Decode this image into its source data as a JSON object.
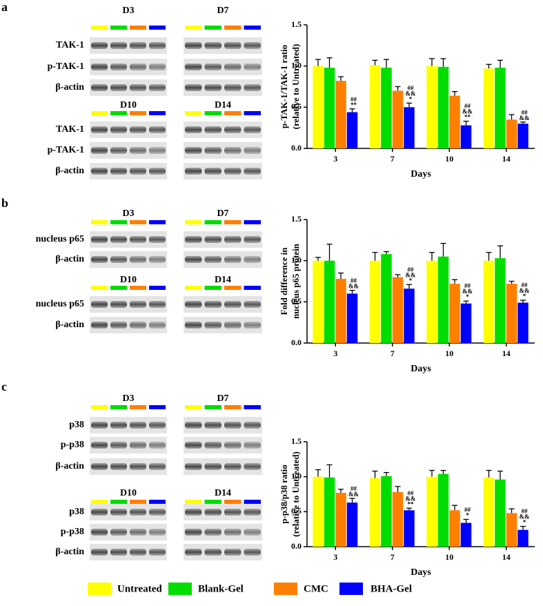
{
  "panels": [
    {
      "letter": "a",
      "groups": [
        {
          "days": [
            "D3",
            "D7"
          ],
          "rows": [
            "TAK-1",
            "p-TAK-1",
            "β-actin"
          ]
        },
        {
          "days": [
            "D10",
            "D14"
          ],
          "rows": [
            "TAK-1",
            "p-TAK-1",
            "β-actin"
          ]
        }
      ]
    },
    {
      "letter": "b",
      "groups": [
        {
          "days": [
            "D3",
            "D7"
          ],
          "rows": [
            "nucleus p65",
            "β-actin"
          ]
        },
        {
          "days": [
            "D10",
            "D14"
          ],
          "rows": [
            "nucleus p65",
            "β-actin"
          ]
        }
      ]
    },
    {
      "letter": "c",
      "groups": [
        {
          "days": [
            "D3",
            "D7"
          ],
          "rows": [
            "p38",
            "p-p38",
            "β-actin"
          ]
        },
        {
          "days": [
            "D10",
            "D14"
          ],
          "rows": [
            "p38",
            "p-p38",
            "β-actin"
          ]
        }
      ]
    }
  ],
  "chart_data": [
    {
      "type": "bar",
      "ylabel": [
        "p-TAK-1/TAK-1 ratio",
        "(relative to Untreated)"
      ],
      "xlabel": "Days",
      "categories": [
        "3",
        "7",
        "10",
        "14"
      ],
      "ylim": [
        0,
        1.5
      ],
      "yticks": [
        {
          "value": 0,
          "label": "0.0"
        },
        0.5,
        {
          "value": 1,
          "label": "1.0"
        },
        1.5
      ],
      "series": [
        {
          "name": "Untreated",
          "color": "#ffff00",
          "values": [
            1.0,
            1.01,
            1.0,
            0.97
          ],
          "errors": [
            0.08,
            0.06,
            0.09,
            0.05
          ]
        },
        {
          "name": "Blank-Gel",
          "color": "#00dd00",
          "values": [
            0.98,
            0.98,
            0.99,
            0.98
          ],
          "errors": [
            0.12,
            0.1,
            0.1,
            0.09
          ]
        },
        {
          "name": "CMC",
          "color": "#ff7f00",
          "values": [
            0.82,
            0.7,
            0.64,
            0.35
          ],
          "errors": [
            0.05,
            0.05,
            0.05,
            0.06
          ]
        },
        {
          "name": "BHA-Gel",
          "color": "#0000ff",
          "values": [
            0.44,
            0.5,
            0.28,
            0.3
          ],
          "errors": [
            0.04,
            0.05,
            0.05,
            0.02
          ],
          "sig": [
            [
              "##",
              "**"
            ],
            [
              "##",
              "&&",
              "*"
            ],
            [
              "##",
              "&&",
              "**"
            ],
            [
              "##",
              "&&"
            ]
          ]
        }
      ]
    },
    {
      "type": "bar",
      "ylabel": [
        "Fold difference in",
        "nucleus p65 protein"
      ],
      "xlabel": "Days",
      "categories": [
        "3",
        "7",
        "10",
        "14"
      ],
      "ylim": [
        0,
        1.5
      ],
      "yticks": [
        {
          "value": 0,
          "label": "0.0"
        },
        0.5,
        {
          "value": 1,
          "label": "1.0"
        },
        1.5
      ],
      "series": [
        {
          "name": "Untreated",
          "color": "#ffff00",
          "values": [
            1.0,
            1.0,
            1.0,
            1.0
          ],
          "errors": [
            0.04,
            0.1,
            0.1,
            0.1
          ]
        },
        {
          "name": "Blank-Gel",
          "color": "#00dd00",
          "values": [
            1.0,
            1.08,
            1.05,
            1.03
          ],
          "errors": [
            0.2,
            0.03,
            0.16,
            0.15
          ]
        },
        {
          "name": "CMC",
          "color": "#ff7f00",
          "values": [
            0.78,
            0.8,
            0.72,
            0.72
          ],
          "errors": [
            0.07,
            0.03,
            0.05,
            0.03
          ]
        },
        {
          "name": "BHA-Gel",
          "color": "#0000ff",
          "values": [
            0.6,
            0.66,
            0.48,
            0.49
          ],
          "errors": [
            0.04,
            0.05,
            0.03,
            0.03
          ],
          "sig": [
            [
              "##",
              "&&"
            ],
            [
              "##",
              "&&",
              "*"
            ],
            [
              "##",
              "&&",
              "*"
            ],
            [
              "##",
              "&&",
              "*"
            ]
          ]
        }
      ]
    },
    {
      "type": "bar",
      "ylabel": [
        "p-p38/p38 ratio",
        "(relative to Untreated)"
      ],
      "xlabel": "Days",
      "categories": [
        "3",
        "7",
        "10",
        "14"
      ],
      "ylim": [
        0,
        1.5
      ],
      "yticks": [
        {
          "value": 0,
          "label": "0.0"
        },
        0.5,
        {
          "value": 1,
          "label": "1.0"
        },
        1.5
      ],
      "series": [
        {
          "name": "Untreated",
          "color": "#ffff00",
          "values": [
            1.0,
            0.98,
            1.0,
            0.99
          ],
          "errors": [
            0.1,
            0.1,
            0.09,
            0.1
          ]
        },
        {
          "name": "Blank-Gel",
          "color": "#00dd00",
          "values": [
            0.99,
            1.01,
            1.04,
            0.96
          ],
          "errors": [
            0.18,
            0.05,
            0.05,
            0.12
          ]
        },
        {
          "name": "CMC",
          "color": "#ff7f00",
          "values": [
            0.77,
            0.78,
            0.52,
            0.48
          ],
          "errors": [
            0.05,
            0.08,
            0.07,
            0.06
          ]
        },
        {
          "name": "BHA-Gel",
          "color": "#0000ff",
          "values": [
            0.63,
            0.52,
            0.34,
            0.24
          ],
          "errors": [
            0.06,
            0.03,
            0.05,
            0.05
          ],
          "sig": [
            [
              "##",
              "&&"
            ],
            [
              "##",
              "&&",
              "**"
            ],
            [
              "##",
              "*"
            ],
            [
              "##",
              "&&",
              "*"
            ]
          ]
        }
      ]
    }
  ]
}
